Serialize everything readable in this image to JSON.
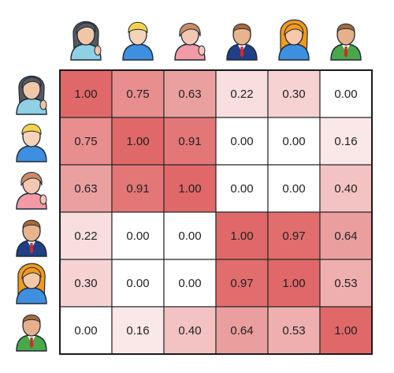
{
  "chart_data": {
    "type": "heatmap",
    "rows": [
      "person-1",
      "person-2",
      "person-3",
      "person-4",
      "person-5",
      "person-6"
    ],
    "columns": [
      "person-1",
      "person-2",
      "person-3",
      "person-4",
      "person-5",
      "person-6"
    ],
    "values": [
      [
        1.0,
        0.75,
        0.63,
        0.22,
        0.3,
        0.0
      ],
      [
        0.75,
        1.0,
        0.91,
        0.0,
        0.0,
        0.16
      ],
      [
        0.63,
        0.91,
        1.0,
        0.0,
        0.0,
        0.4
      ],
      [
        0.22,
        0.0,
        0.0,
        1.0,
        0.97,
        0.64
      ],
      [
        0.3,
        0.0,
        0.0,
        0.97,
        1.0,
        0.53
      ],
      [
        0.0,
        0.16,
        0.4,
        0.64,
        0.53,
        1.0
      ]
    ],
    "value_format": "0.00",
    "range": [
      0,
      1
    ],
    "colormap": {
      "low": "#ffffff",
      "high": "#e06868"
    },
    "grid": true,
    "row_header": "avatar icons",
    "column_header": "avatar icons"
  },
  "avatars": [
    {
      "icon": "woman-dark-hair-waving-icon",
      "hair": "#555a60",
      "skin": "#f1c6a6",
      "shirt": "#8fd0e4"
    },
    {
      "icon": "boy-blond-hair-icon",
      "hair": "#f4d24a",
      "skin": "#f5d3b8",
      "shirt": "#3f8fe0"
    },
    {
      "icon": "girl-brown-hair-waving-icon",
      "hair": "#c98c64",
      "skin": "#f4c7b4",
      "shirt": "#f29aa6"
    },
    {
      "icon": "businessman-navy-suit-icon",
      "hair": "#a86a3a",
      "skin": "#e8b48c",
      "shirt": "#1f3f86"
    },
    {
      "icon": "woman-orange-hair-icon",
      "hair": "#f29a1c",
      "skin": "#f4c8a8",
      "shirt": "#3f8fe0"
    },
    {
      "icon": "man-green-suit-icon",
      "hair": "#a26a3e",
      "skin": "#e7b08a",
      "shirt": "#49a84a"
    }
  ]
}
